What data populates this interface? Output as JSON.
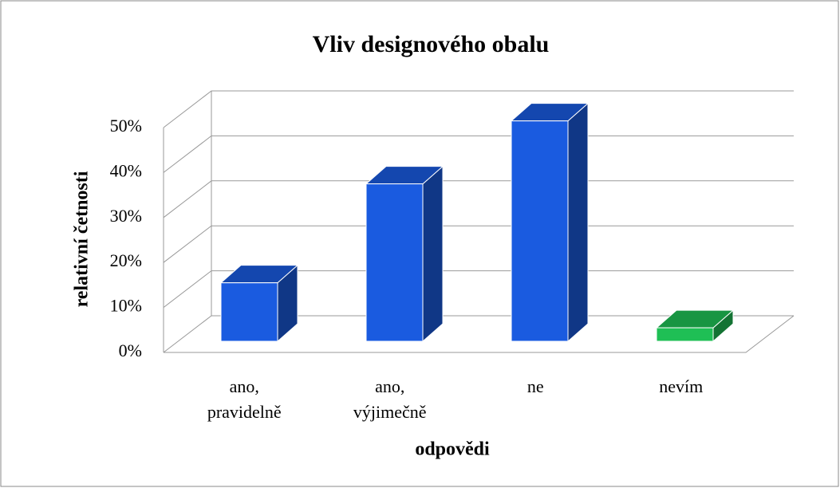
{
  "chart_data": {
    "type": "bar3d",
    "title": "Vliv designového obalu",
    "x_label": "odpovědi",
    "y_label": "relativní četnosti",
    "categories": [
      [
        "ano,",
        "pravidelně"
      ],
      [
        "ano,",
        "výjimečně"
      ],
      [
        "ne"
      ],
      [
        "nevím"
      ]
    ],
    "values": [
      13,
      35,
      49,
      3
    ],
    "colors": [
      "#1a5be0",
      "#1a5be0",
      "#1a5be0",
      "#1fbf55"
    ],
    "ylim": [
      0,
      50
    ],
    "yticks": [
      {
        "value": 0,
        "label": "0%"
      },
      {
        "value": 10,
        "label": "10%"
      },
      {
        "value": 20,
        "label": "20%"
      },
      {
        "value": 30,
        "label": "30%"
      },
      {
        "value": 40,
        "label": "40%"
      },
      {
        "value": 50,
        "label": "50%"
      }
    ],
    "grid": true
  }
}
